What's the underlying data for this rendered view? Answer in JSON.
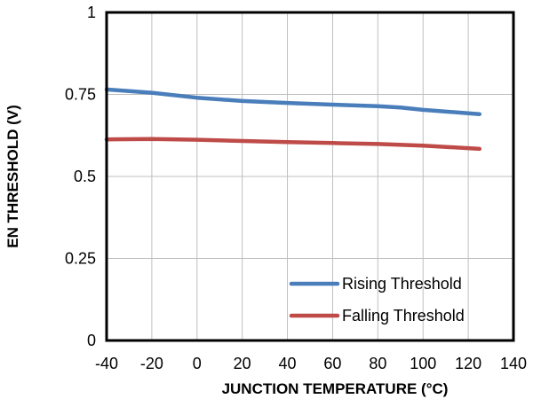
{
  "chart_data": {
    "type": "line",
    "title": "",
    "xlabel": "JUNCTION TEMPERATURE (°C)",
    "ylabel": "EN THRESHOLD (V)",
    "xlim": [
      -40,
      140
    ],
    "ylim": [
      0,
      1
    ],
    "xticks": [
      -40,
      -20,
      0,
      20,
      40,
      60,
      80,
      100,
      120,
      140
    ],
    "yticks": [
      0,
      0.25,
      0.5,
      0.75,
      1
    ],
    "ytick_labels": [
      "0",
      "0.25",
      "0.5",
      "0.75",
      "1"
    ],
    "grid": true,
    "legend_position": "bottom-right",
    "series": [
      {
        "name": "Rising Threshold",
        "color": "#4a7ebb",
        "x": [
          -40,
          -20,
          0,
          20,
          40,
          60,
          80,
          90,
          100,
          125
        ],
        "y": [
          0.765,
          0.755,
          0.74,
          0.73,
          0.724,
          0.719,
          0.714,
          0.71,
          0.703,
          0.69
        ]
      },
      {
        "name": "Falling Threshold",
        "color": "#be4b48",
        "x": [
          -40,
          -20,
          0,
          20,
          40,
          60,
          80,
          100,
          125
        ],
        "y": [
          0.613,
          0.614,
          0.612,
          0.608,
          0.605,
          0.602,
          0.599,
          0.594,
          0.584
        ]
      }
    ]
  }
}
